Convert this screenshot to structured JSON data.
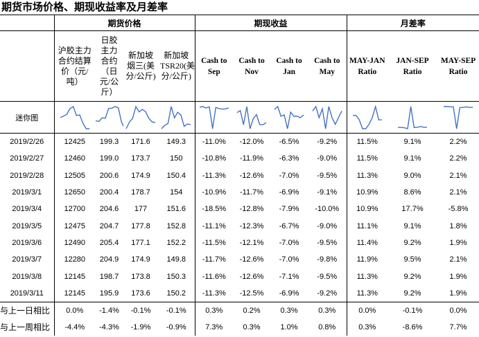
{
  "title": "期货市场价格、期现收益率及月差率",
  "groups": [
    "期货价格",
    "期现收益",
    "月差率"
  ],
  "columns": [
    "沪胶主力合约结算价（元/吨）",
    "日胶主力合约（日元/公斤）",
    "新加坡烟三(美分/公斤)",
    "新加坡TSR20(美分/公斤)",
    "Cash to Sep",
    "Cash to Nov",
    "Cash to Jan",
    "Cash to May",
    "MAY-JAN Ratio",
    "JAN-SEP Ratio",
    "MAY-SEP Ratio"
  ],
  "sparkline_label": "迷你图",
  "rows": [
    {
      "date": "2019/2/26",
      "values": [
        "12425",
        "199.3",
        "171.6",
        "149.3",
        "-11.0%",
        "-12.0%",
        "-6.5%",
        "-9.2%",
        "11.5%",
        "9.1%",
        "2.2%"
      ]
    },
    {
      "date": "2019/2/27",
      "values": [
        "12460",
        "199.0",
        "173.7",
        "150",
        "-10.8%",
        "-11.9%",
        "-6.3%",
        "-9.0%",
        "11.5%",
        "9.1%",
        "2.2%"
      ]
    },
    {
      "date": "2019/2/28",
      "values": [
        "12505",
        "200.6",
        "174.9",
        "150.4",
        "-11.3%",
        "-12.6%",
        "-7.0%",
        "-9.5%",
        "11.3%",
        "9.0%",
        "2.1%"
      ]
    },
    {
      "date": "2019/3/1",
      "values": [
        "12650",
        "200.4",
        "178.7",
        "154",
        "-10.9%",
        "-11.7%",
        "-6.9%",
        "-9.1%",
        "10.9%",
        "8.6%",
        "2.1%"
      ]
    },
    {
      "date": "2019/3/4",
      "values": [
        "12700",
        "204.6",
        "177",
        "151.6",
        "-18.5%",
        "-12.8%",
        "-7.9%",
        "-10.0%",
        "10.9%",
        "17.7%",
        "-5.8%"
      ]
    },
    {
      "date": "2019/3/5",
      "values": [
        "12475",
        "204.7",
        "177.8",
        "152.8",
        "-11.1%",
        "-12.3%",
        "-6.7%",
        "-9.0%",
        "11.1%",
        "9.1%",
        "1.8%"
      ]
    },
    {
      "date": "2019/3/6",
      "values": [
        "12490",
        "205.4",
        "177.1",
        "152.2",
        "-11.5%",
        "-12.1%",
        "-7.0%",
        "-9.5%",
        "11.4%",
        "9.2%",
        "1.9%"
      ]
    },
    {
      "date": "2019/3/7",
      "values": [
        "12280",
        "204.9",
        "174.9",
        "149.8",
        "-11.7%",
        "-12.6%",
        "-7.0%",
        "-9.8%",
        "11.9%",
        "9.5%",
        "2.1%"
      ]
    },
    {
      "date": "2019/3/8",
      "values": [
        "12145",
        "198.7",
        "173.8",
        "150.3",
        "-11.6%",
        "-12.6%",
        "-7.1%",
        "-9.5%",
        "11.3%",
        "9.2%",
        "1.9%"
      ]
    },
    {
      "date": "2019/3/11",
      "values": [
        "12145",
        "195.9",
        "173.6",
        "150.2",
        "-11.3%",
        "-12.5%",
        "-6.9%",
        "-9.2%",
        "11.3%",
        "9.2%",
        "1.9%"
      ]
    }
  ],
  "summary": [
    {
      "label": "与上一日相比",
      "values": [
        "0.0%",
        "-1.4%",
        "-0.1%",
        "-0.1%",
        "0.3%",
        "0.2%",
        "0.3%",
        "0.3%",
        "0.0%",
        "-0.1%",
        "0.0%"
      ]
    },
    {
      "label": "与上一周相比",
      "values": [
        "-4.4%",
        "-4.3%",
        "-1.9%",
        "-0.9%",
        "7.3%",
        "0.3%",
        "1.0%",
        "0.8%",
        "0.3%",
        "-8.6%",
        "7.7%"
      ]
    }
  ],
  "sparkline_color": "#4472C4"
}
